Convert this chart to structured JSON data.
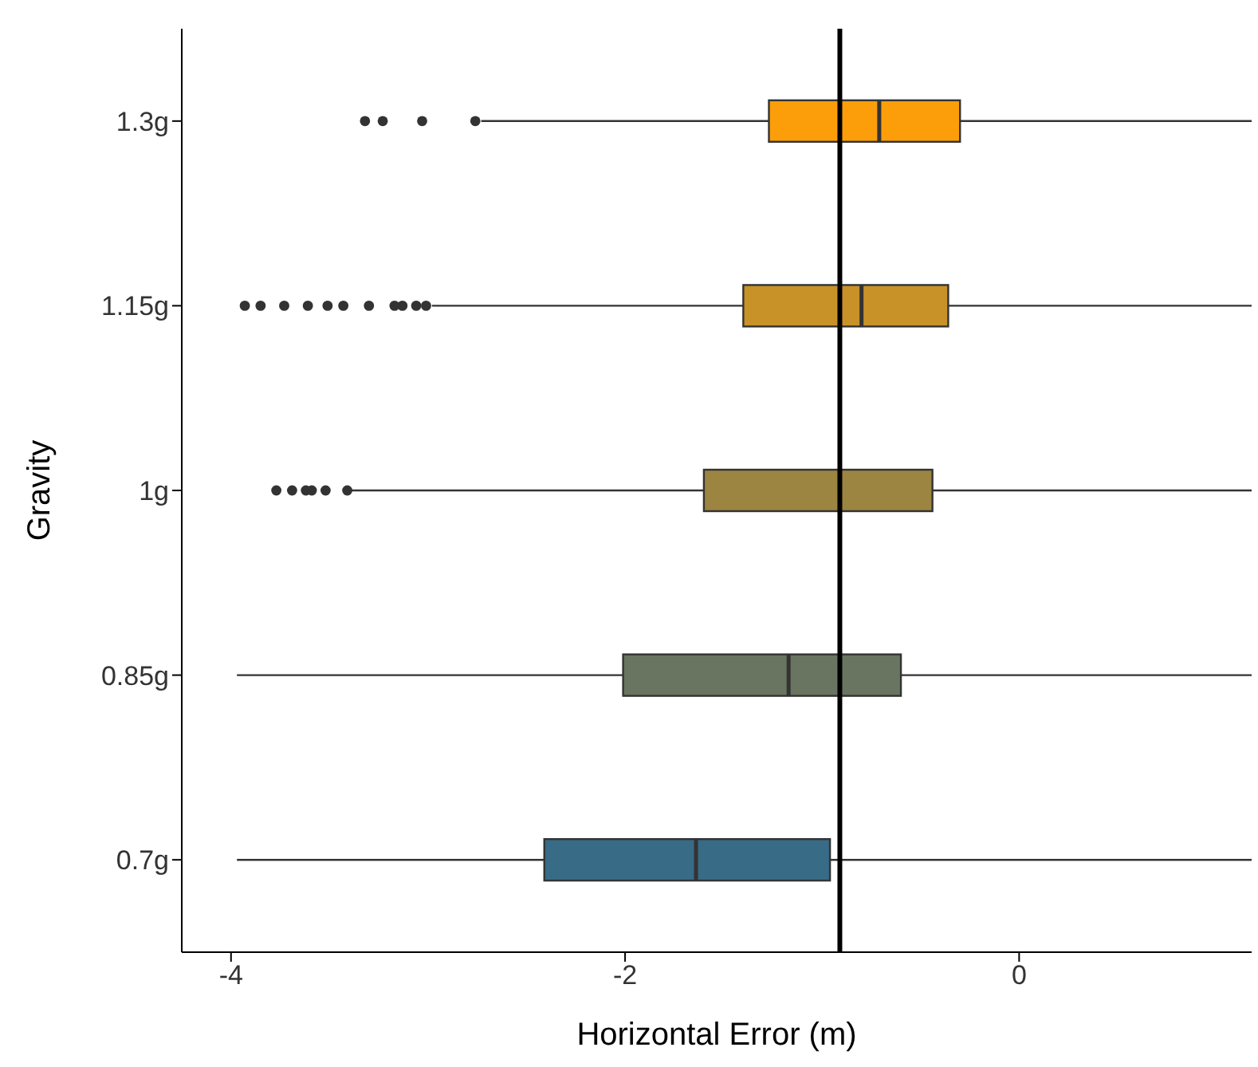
{
  "chart_data": {
    "type": "box",
    "orientation": "horizontal",
    "xlabel": "Horizontal Error (m)",
    "ylabel": "Gravity",
    "categories": [
      "1.3g",
      "1.15g",
      "1g",
      "0.85g",
      "0.7g"
    ],
    "colors": [
      "#fb9e0a",
      "#c99228",
      "#9c8441",
      "#6a7561",
      "#386b86"
    ],
    "boxes": [
      {
        "low": -2.73,
        "q1": -1.27,
        "median": -0.71,
        "q3": -0.3,
        "high": 1.18,
        "outliers": [
          -3.32,
          -3.23,
          -3.03,
          -2.76
        ]
      },
      {
        "low": -2.98,
        "q1": -1.4,
        "median": -0.8,
        "q3": -0.36,
        "high": 1.18,
        "outliers": [
          -3.93,
          -3.85,
          -3.73,
          -3.61,
          -3.51,
          -3.43,
          -3.3,
          -3.17,
          -3.13,
          -3.06,
          -3.01
        ]
      },
      {
        "low": -3.4,
        "q1": -1.6,
        "median": -0.91,
        "q3": -0.44,
        "high": 1.18,
        "outliers": [
          -3.77,
          -3.69,
          -3.62,
          -3.59,
          -3.52,
          -3.41
        ]
      },
      {
        "low": -3.97,
        "q1": -2.01,
        "median": -1.17,
        "q3": -0.6,
        "high": 1.18
      },
      {
        "low": -3.97,
        "q1": -2.41,
        "median": -1.64,
        "q3": -0.96,
        "high": 1.18
      }
    ],
    "xlim": [
      -4.25,
      1.18
    ],
    "xticks": [
      -4,
      -2,
      0
    ],
    "ref_lines": [
      {
        "axis": "x",
        "value": -0.91,
        "color": "#000000"
      }
    ],
    "grid": false
  }
}
